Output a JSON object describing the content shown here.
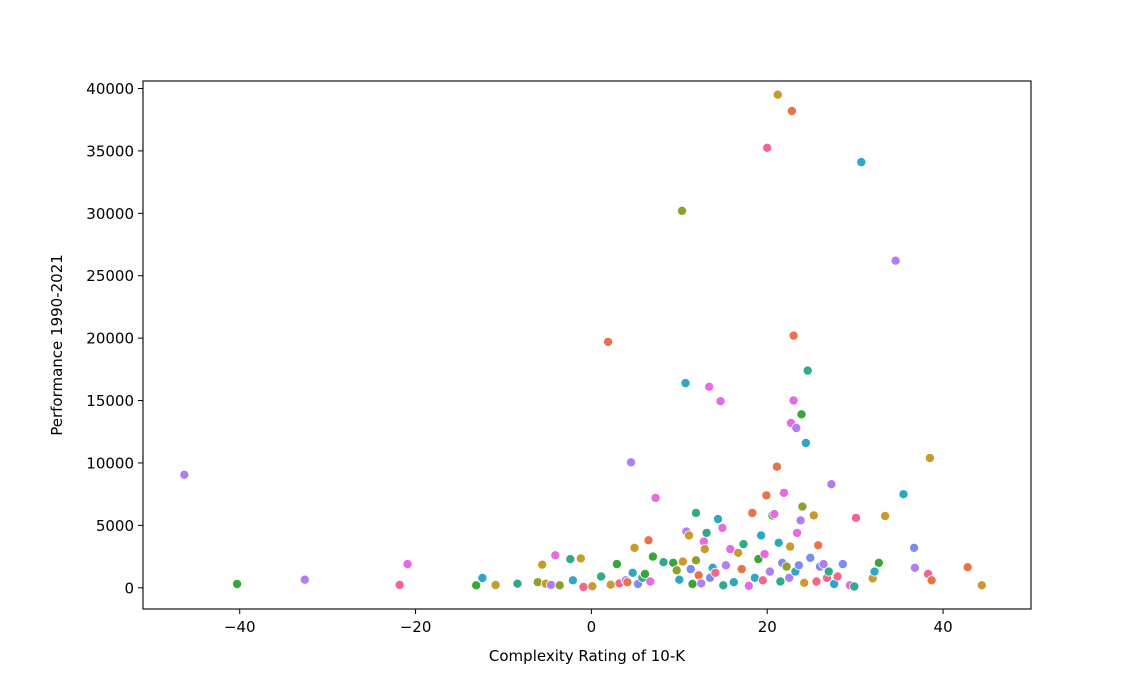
{
  "chart_data": {
    "type": "scatter",
    "title": "",
    "xlabel": "Complexity Rating of 10-K",
    "ylabel": "Performance 1990-2021",
    "xlim": [
      -51,
      50
    ],
    "ylim": [
      -1700,
      40600
    ],
    "xticks": [
      -40,
      -20,
      0,
      20,
      40
    ],
    "yticks": [
      0,
      5000,
      10000,
      15000,
      20000,
      25000,
      30000,
      35000,
      40000
    ],
    "xtick_labels": [
      "−40",
      "−20",
      "0",
      "20",
      "40"
    ],
    "ytick_labels": [
      "0",
      "5000",
      "10000",
      "15000",
      "20000",
      "25000",
      "30000",
      "35000",
      "40000"
    ],
    "grid": false,
    "legend": "none",
    "palette": [
      "#e8734a",
      "#c99a2e",
      "#8e9f2b",
      "#3aa639",
      "#33a98b",
      "#2fa7c4",
      "#7b8cf0",
      "#b07ef0",
      "#e46be3",
      "#f2668e"
    ],
    "points": [
      [
        -46.3,
        9050,
        7
      ],
      [
        -40.3,
        300,
        3
      ],
      [
        -32.6,
        650,
        7
      ],
      [
        -21.8,
        230,
        9
      ],
      [
        -20.9,
        1900,
        8
      ],
      [
        -13.1,
        200,
        3
      ],
      [
        -12.4,
        780,
        5
      ],
      [
        -10.9,
        220,
        1
      ],
      [
        -8.4,
        330,
        4
      ],
      [
        -6.1,
        450,
        2
      ],
      [
        -5.6,
        1850,
        1
      ],
      [
        -5.2,
        330,
        1
      ],
      [
        -4.6,
        230,
        7
      ],
      [
        -4.1,
        2600,
        8
      ],
      [
        -3.6,
        200,
        2
      ],
      [
        -2.4,
        2300,
        4
      ],
      [
        -2.1,
        600,
        5
      ],
      [
        -1.2,
        2350,
        1
      ],
      [
        -0.9,
        60,
        9
      ],
      [
        0.1,
        120,
        1
      ],
      [
        1.1,
        900,
        4
      ],
      [
        1.9,
        19700,
        0
      ],
      [
        2.2,
        250,
        1
      ],
      [
        2.9,
        1900,
        3
      ],
      [
        3.2,
        350,
        9
      ],
      [
        3.9,
        600,
        7
      ],
      [
        4.1,
        450,
        0
      ],
      [
        4.5,
        10050,
        7
      ],
      [
        4.7,
        1200,
        5
      ],
      [
        4.9,
        3200,
        1
      ],
      [
        5.3,
        300,
        6
      ],
      [
        5.8,
        800,
        4
      ],
      [
        6.1,
        1100,
        3
      ],
      [
        6.5,
        3800,
        0
      ],
      [
        6.7,
        500,
        8
      ],
      [
        7.0,
        2500,
        3
      ],
      [
        7.3,
        7200,
        8
      ],
      [
        8.2,
        2050,
        4
      ],
      [
        9.3,
        2000,
        3
      ],
      [
        9.7,
        1400,
        2
      ],
      [
        10.0,
        650,
        5
      ],
      [
        10.3,
        30200,
        2
      ],
      [
        10.4,
        2100,
        1
      ],
      [
        10.7,
        16400,
        5
      ],
      [
        10.8,
        4500,
        7
      ],
      [
        11.1,
        4200,
        1
      ],
      [
        11.3,
        1500,
        6
      ],
      [
        11.5,
        300,
        3
      ],
      [
        11.9,
        6000,
        4
      ],
      [
        11.9,
        2200,
        2
      ],
      [
        12.2,
        1000,
        0
      ],
      [
        12.5,
        350,
        7
      ],
      [
        12.8,
        3700,
        8
      ],
      [
        12.9,
        3100,
        1
      ],
      [
        13.1,
        4400,
        4
      ],
      [
        13.4,
        16100,
        8
      ],
      [
        13.5,
        800,
        6
      ],
      [
        13.8,
        1600,
        5
      ],
      [
        14.1,
        1200,
        9
      ],
      [
        14.4,
        5500,
        5
      ],
      [
        14.7,
        14950,
        8
      ],
      [
        14.9,
        4800,
        8
      ],
      [
        15.0,
        200,
        4
      ],
      [
        15.3,
        1800,
        7
      ],
      [
        15.8,
        3100,
        8
      ],
      [
        16.2,
        450,
        5
      ],
      [
        16.7,
        2800,
        1
      ],
      [
        17.1,
        1500,
        0
      ],
      [
        17.3,
        3500,
        4
      ],
      [
        17.9,
        150,
        8
      ],
      [
        18.3,
        6000,
        0
      ],
      [
        18.6,
        800,
        5
      ],
      [
        19.0,
        2300,
        3
      ],
      [
        19.3,
        4200,
        5
      ],
      [
        19.5,
        600,
        9
      ],
      [
        19.7,
        2700,
        8
      ],
      [
        19.9,
        7400,
        0
      ],
      [
        20.0,
        35250,
        9
      ],
      [
        20.3,
        1300,
        7
      ],
      [
        20.6,
        5800,
        3
      ],
      [
        20.8,
        5900,
        8
      ],
      [
        21.1,
        9700,
        0
      ],
      [
        21.2,
        39500,
        1
      ],
      [
        21.3,
        3600,
        5
      ],
      [
        21.5,
        500,
        4
      ],
      [
        21.7,
        2000,
        6
      ],
      [
        21.9,
        7600,
        8
      ],
      [
        22.2,
        1700,
        2
      ],
      [
        22.5,
        800,
        7
      ],
      [
        22.6,
        3300,
        1
      ],
      [
        22.7,
        13200,
        8
      ],
      [
        22.8,
        38200,
        0
      ],
      [
        23.0,
        20200,
        0
      ],
      [
        23.0,
        15000,
        8
      ],
      [
        23.2,
        1300,
        5
      ],
      [
        23.3,
        12800,
        7
      ],
      [
        23.4,
        4400,
        8
      ],
      [
        23.6,
        1800,
        6
      ],
      [
        23.8,
        5400,
        7
      ],
      [
        23.9,
        13900,
        3
      ],
      [
        24.0,
        6500,
        2
      ],
      [
        24.2,
        400,
        1
      ],
      [
        24.4,
        11600,
        5
      ],
      [
        24.6,
        17400,
        4
      ],
      [
        24.9,
        2400,
        6
      ],
      [
        25.3,
        5800,
        1
      ],
      [
        25.6,
        500,
        9
      ],
      [
        25.8,
        3400,
        0
      ],
      [
        26.0,
        1700,
        6
      ],
      [
        26.4,
        1900,
        7
      ],
      [
        26.8,
        800,
        9
      ],
      [
        27.0,
        1300,
        4
      ],
      [
        27.3,
        8300,
        7
      ],
      [
        27.6,
        300,
        5
      ],
      [
        28.0,
        900,
        9
      ],
      [
        28.6,
        1900,
        6
      ],
      [
        29.4,
        200,
        8
      ],
      [
        29.9,
        100,
        4
      ],
      [
        30.1,
        5600,
        9
      ],
      [
        30.7,
        34100,
        5
      ],
      [
        32.0,
        750,
        1
      ],
      [
        32.2,
        1300,
        5
      ],
      [
        32.7,
        2000,
        3
      ],
      [
        33.4,
        5750,
        1
      ],
      [
        34.6,
        26200,
        7
      ],
      [
        35.5,
        7500,
        5
      ],
      [
        36.7,
        3200,
        6
      ],
      [
        36.8,
        1600,
        7
      ],
      [
        38.3,
        1100,
        9
      ],
      [
        38.5,
        10400,
        1
      ],
      [
        38.7,
        600,
        0
      ],
      [
        42.8,
        1650,
        0
      ],
      [
        44.4,
        200,
        1
      ]
    ]
  }
}
